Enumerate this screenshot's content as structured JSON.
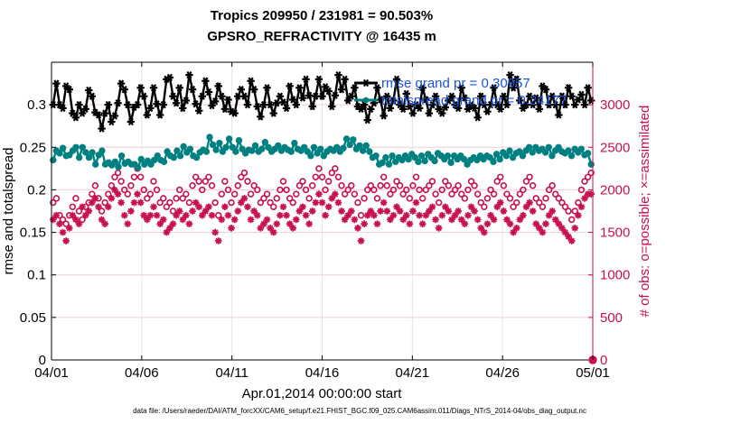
{
  "chart_data": {
    "type": "line",
    "title_line1": "Tropics 209950 / 231981 = 90.503%",
    "title_line2": "GPSRO_REFRACTIVITY @ 16435 m",
    "xlabel": "Apr.01,2014 00:00:00 start",
    "ylabel_left": "rmse and totalspread",
    "ylabel_right": "# of obs: o=possible; ×=assimilated",
    "footer": "data file: /Users/raeder/DAI/ATM_forcXX/CAM6_setup/f.e21.FHIST_BGC.f09_025.CAM6assim.011/Diags_NTrS_2014-04/obs_diag_output.nc",
    "x_range": [
      0,
      30
    ],
    "x_ticks": [
      0,
      5,
      10,
      15,
      20,
      25,
      30
    ],
    "x_tick_labels": [
      "04/01",
      "04/06",
      "04/11",
      "04/16",
      "04/21",
      "04/26",
      "05/01"
    ],
    "ylim_left": [
      0,
      0.35
    ],
    "y_ticks_left": [
      0,
      0.05,
      0.1,
      0.15,
      0.2,
      0.25,
      0.3
    ],
    "y_tick_labels_left": [
      "0",
      "0.05",
      "0.1",
      "0.15",
      "0.2",
      "0.25",
      "0.3"
    ],
    "ylim_right": [
      0,
      3500
    ],
    "y_ticks_right": [
      0,
      500,
      1000,
      1500,
      2000,
      2500,
      3000
    ],
    "y_tick_labels_right": [
      "0",
      "500",
      "1000",
      "1500",
      "2000",
      "2500",
      "3000"
    ],
    "grid": true,
    "legend_position": "top-right",
    "colors": {
      "rmse": "#000000",
      "spread": "#008080",
      "obs": "#c8104f",
      "legend_text": "#1a53d6"
    },
    "series": [
      {
        "name": "rmse grand pr = 0.30957",
        "legend_label": "rmse grand pr = 0.30957",
        "axis": "left",
        "marker": "star",
        "line": true,
        "values": [
          0.3,
          0.325,
          0.3,
          0.296,
          0.322,
          0.318,
          0.29,
          0.285,
          0.3,
          0.29,
          0.295,
          0.317,
          0.31,
          0.291,
          0.288,
          0.272,
          0.29,
          0.3,
          0.28,
          0.287,
          0.302,
          0.325,
          0.318,
          0.3,
          0.28,
          0.297,
          0.3,
          0.32,
          0.31,
          0.288,
          0.296,
          0.32,
          0.301,
          0.288,
          0.3,
          0.33,
          0.332,
          0.31,
          0.302,
          0.32,
          0.296,
          0.305,
          0.335,
          0.318,
          0.301,
          0.293,
          0.31,
          0.328,
          0.315,
          0.299,
          0.304,
          0.322,
          0.31,
          0.295,
          0.306,
          0.292,
          0.29,
          0.31,
          0.318,
          0.31,
          0.3,
          0.328,
          0.318,
          0.298,
          0.286,
          0.3,
          0.32,
          0.3,
          0.29,
          0.302,
          0.31,
          0.303,
          0.296,
          0.322,
          0.306,
          0.3,
          0.32,
          0.308,
          0.33,
          0.311,
          0.298,
          0.31,
          0.33,
          0.31,
          0.321,
          0.316,
          0.298,
          0.311,
          0.335,
          0.318,
          0.33,
          0.305,
          0.31,
          0.32,
          0.298,
          0.295,
          0.3,
          0.282,
          0.295,
          0.302,
          0.32,
          0.306,
          0.287,
          0.31,
          0.296,
          0.305,
          0.33,
          0.3,
          0.295,
          0.313,
          0.298,
          0.29,
          0.3,
          0.296,
          0.32,
          0.306,
          0.29,
          0.3,
          0.31,
          0.295,
          0.29,
          0.297,
          0.305,
          0.31,
          0.3,
          0.296,
          0.32,
          0.308,
          0.295,
          0.3,
          0.296,
          0.285,
          0.31,
          0.3,
          0.292,
          0.3,
          0.32,
          0.3,
          0.295,
          0.31,
          0.3,
          0.335,
          0.32,
          0.33,
          0.305,
          0.296,
          0.3,
          0.31,
          0.3,
          0.308,
          0.295,
          0.322,
          0.318,
          0.3,
          0.31,
          0.3,
          0.288,
          0.31,
          0.3,
          0.32,
          0.31,
          0.3,
          0.306,
          0.312,
          0.3,
          0.32,
          0.305
        ]
      },
      {
        "name": "totalspread grand pr = 0.24177",
        "legend_label": "totalspread grand pr = 0.24177",
        "axis": "left",
        "marker": "circle",
        "line": true,
        "values": [
          0.235,
          0.246,
          0.243,
          0.249,
          0.24,
          0.241,
          0.246,
          0.25,
          0.238,
          0.25,
          0.244,
          0.238,
          0.244,
          0.23,
          0.241,
          0.246,
          0.23,
          0.232,
          0.229,
          0.233,
          0.227,
          0.24,
          0.231,
          0.233,
          0.23,
          0.23,
          0.226,
          0.236,
          0.23,
          0.234,
          0.23,
          0.235,
          0.24,
          0.235,
          0.233,
          0.245,
          0.24,
          0.238,
          0.246,
          0.24,
          0.251,
          0.244,
          0.248,
          0.24,
          0.238,
          0.244,
          0.247,
          0.245,
          0.262,
          0.253,
          0.247,
          0.255,
          0.245,
          0.25,
          0.26,
          0.25,
          0.245,
          0.258,
          0.248,
          0.243,
          0.247,
          0.246,
          0.252,
          0.245,
          0.248,
          0.256,
          0.25,
          0.245,
          0.248,
          0.252,
          0.246,
          0.25,
          0.247,
          0.245,
          0.255,
          0.248,
          0.246,
          0.25,
          0.245,
          0.24,
          0.25,
          0.243,
          0.248,
          0.24,
          0.245,
          0.248,
          0.246,
          0.25,
          0.245,
          0.249,
          0.26,
          0.253,
          0.259,
          0.248,
          0.252,
          0.246,
          0.252,
          0.245,
          0.238,
          0.24,
          0.23,
          0.232,
          0.238,
          0.23,
          0.24,
          0.233,
          0.238,
          0.235,
          0.24,
          0.236,
          0.242,
          0.238,
          0.233,
          0.24,
          0.234,
          0.242,
          0.238,
          0.234,
          0.243,
          0.24,
          0.236,
          0.24,
          0.232,
          0.24,
          0.236,
          0.24,
          0.236,
          0.23,
          0.235,
          0.238,
          0.235,
          0.24,
          0.236,
          0.24,
          0.238,
          0.233,
          0.242,
          0.236,
          0.244,
          0.24,
          0.246,
          0.238,
          0.243,
          0.245,
          0.24,
          0.246,
          0.25,
          0.244,
          0.25,
          0.246,
          0.248,
          0.244,
          0.25,
          0.24,
          0.246,
          0.25,
          0.245,
          0.243,
          0.246,
          0.24,
          0.248,
          0.244,
          0.248,
          0.241,
          0.243,
          0.23
        ]
      },
      {
        "name": "obs possible",
        "axis": "right",
        "marker": "open-circle",
        "line": false,
        "values": [
          1850,
          1900,
          1700,
          1650,
          1600,
          1700,
          1800,
          1900,
          1750,
          1650,
          1800,
          1850,
          1950,
          2050,
          1900,
          1750,
          1850,
          1950,
          2050,
          2150,
          2200,
          2100,
          2000,
          1950,
          2050,
          2150,
          2250,
          2150,
          2000,
          1900,
          1950,
          2100,
          2000,
          1850,
          1900,
          1800,
          1850,
          1750,
          1900,
          2000,
          1900,
          1950,
          1850,
          2050,
          2150,
          2100,
          2000,
          2100,
          2150,
          2050,
          1850,
          1700,
          1950,
          2100,
          2000,
          1850,
          1950,
          2050,
          2150,
          2200,
          2100,
          1950,
          2050,
          2000,
          1850,
          1900,
          1950,
          1850,
          1800,
          1900,
          2000,
          2100,
          2000,
          1900,
          1850,
          1950,
          2050,
          2100,
          2000,
          1900,
          2050,
          2150,
          2250,
          2150,
          2000,
          2100,
          2200,
          2250,
          2150,
          2050,
          1950,
          2000,
          2050,
          1950,
          1850,
          1700,
          1900,
          2000,
          2050,
          2000,
          1900,
          2050,
          2150,
          2050,
          1950,
          2000,
          2100,
          2050,
          1950,
          2000,
          1900,
          2050,
          2150,
          2000,
          1900,
          2000,
          2050,
          2100,
          1950,
          1850,
          2000,
          2100,
          2050,
          1950,
          2000,
          2050,
          1950,
          1900,
          2000,
          2100,
          2050,
          1950,
          1850,
          1800,
          1900,
          2000,
          1950,
          2100,
          2150,
          2050,
          1950,
          1900,
          1800,
          1850,
          1950,
          2000,
          2100,
          2150,
          2050,
          1900,
          1850,
          1800,
          1900,
          2000,
          2050,
          1950,
          1900,
          1850,
          1800,
          1750,
          1650,
          1750,
          1850,
          2000,
          2100,
          2150,
          2200
        ]
      },
      {
        "name": "obs assimilated",
        "axis": "right",
        "marker": "asterisk",
        "line": false,
        "values": [
          1650,
          1700,
          1600,
          1500,
          1400,
          1550,
          1700,
          1650,
          1600,
          1800,
          1700,
          1750,
          1850,
          1900,
          1800,
          1650,
          1600,
          1800,
          1900,
          2000,
          1950,
          1850,
          1700,
          1600,
          1750,
          1850,
          1950,
          1850,
          1700,
          1650,
          1700,
          1800,
          1700,
          1600,
          1650,
          1500,
          1550,
          1600,
          1700,
          1750,
          1650,
          1700,
          1600,
          1750,
          1850,
          1800,
          1700,
          1750,
          1800,
          1700,
          1500,
          1400,
          1650,
          1800,
          1700,
          1550,
          1650,
          1750,
          1850,
          1900,
          1800,
          1650,
          1750,
          1700,
          1550,
          1600,
          1650,
          1550,
          1500,
          1600,
          1700,
          1800,
          1700,
          1600,
          1550,
          1650,
          1750,
          1800,
          1700,
          1600,
          1750,
          1850,
          1950,
          1850,
          1700,
          1800,
          1900,
          1950,
          1850,
          1750,
          1650,
          1700,
          1750,
          1650,
          1550,
          1400,
          1600,
          1700,
          1750,
          1700,
          1600,
          1750,
          1850,
          1750,
          1650,
          1700,
          1800,
          1750,
          1650,
          1700,
          1600,
          1750,
          1850,
          1700,
          1600,
          1700,
          1750,
          1800,
          1650,
          1550,
          1700,
          1800,
          1750,
          1650,
          1700,
          1750,
          1650,
          1600,
          1700,
          1800,
          1750,
          1650,
          1550,
          1500,
          1600,
          1700,
          1650,
          1800,
          1850,
          1750,
          1650,
          1600,
          1500,
          1550,
          1650,
          1700,
          1800,
          1850,
          1750,
          1600,
          1550,
          1500,
          1600,
          1700,
          1750,
          1650,
          1600,
          1550,
          1500,
          1450,
          1400,
          1550,
          1700,
          1800,
          1900,
          1950,
          1950
        ]
      }
    ],
    "extra_points": [
      {
        "name": "obs possible at 05/01",
        "axis": "right",
        "x": 30,
        "y": 0,
        "marker": "open-circle"
      },
      {
        "name": "obs assimilated at 05/01",
        "axis": "right",
        "x": 30,
        "y": 0,
        "marker": "asterisk"
      }
    ]
  }
}
